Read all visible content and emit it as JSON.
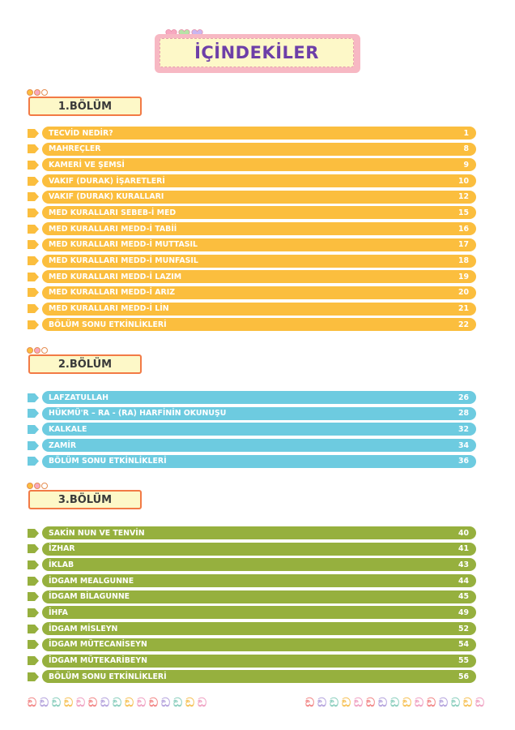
{
  "title": "İÇİNDEKİLER",
  "sections": [
    {
      "label": "1.BÖLÜM",
      "color": "#fbbe3e",
      "arrow_color": "#fbbe3e",
      "items": [
        {
          "label": "TECVİD NEDİR?",
          "page": "1"
        },
        {
          "label": "MAHREÇLER",
          "page": "8"
        },
        {
          "label": "KAMERİ VE ŞEMSİ",
          "page": "9"
        },
        {
          "label": "VAKIF (DURAK) İŞARETLERİ",
          "page": "10"
        },
        {
          "label": "VAKIF (DURAK) KURALLARI",
          "page": "12"
        },
        {
          "label": "MED KURALLARI SEBEB-İ MED",
          "page": "15"
        },
        {
          "label": "MED KURALLARI MEDD-İ TABİİ",
          "page": "16"
        },
        {
          "label": "MED KURALLARI MEDD-İ MUTTASIL",
          "page": "17"
        },
        {
          "label": "MED KURALLARI MEDD-İ MUNFASIL",
          "page": "18"
        },
        {
          "label": "MED KURALLARI MEDD-İ LAZIM",
          "page": "19"
        },
        {
          "label": "MED KURALLARI MEDD-İ ARIZ",
          "page": "20"
        },
        {
          "label": "MED KURALLARI MEDD-İ LİN",
          "page": "21"
        },
        {
          "label": "BÖLÜM SONU ETKİNLİKLERİ",
          "page": "22"
        }
      ]
    },
    {
      "label": "2.BÖLÜM",
      "color": "#6dcbe0",
      "arrow_color": "#6dcbe0",
      "items": [
        {
          "label": "LAFZATULLAH",
          "page": "26"
        },
        {
          "label": "HÜKMÜ'R – RA - (RA) HARFİNİN OKUNUŞU",
          "page": "28"
        },
        {
          "label": "KALKALE",
          "page": "32"
        },
        {
          "label": "ZAMİR",
          "page": "34"
        },
        {
          "label": "BÖLÜM SONU ETKİNLİKLERİ",
          "page": "36"
        }
      ]
    },
    {
      "label": "3.BÖLÜM",
      "color": "#96b03e",
      "arrow_color": "#96b03e",
      "items": [
        {
          "label": "SAKİN NUN VE TENVİN",
          "page": "40"
        },
        {
          "label": "İZHAR",
          "page": "41"
        },
        {
          "label": "İKLAB",
          "page": "43"
        },
        {
          "label": "İDGAM MEALGUNNE",
          "page": "44"
        },
        {
          "label": "İDGAM BİLAGUNNE",
          "page": "45"
        },
        {
          "label": "İHFA",
          "page": "49"
        },
        {
          "label": "İDGAM MİSLEYN",
          "page": "52"
        },
        {
          "label": "İDGAM MÜTECANİSEYN",
          "page": "54"
        },
        {
          "label": "İDGAM MÜTEKARİBEYN",
          "page": "55"
        },
        {
          "label": "BÖLÜM SONU ETKİNLİKLERİ",
          "page": "56"
        }
      ]
    }
  ],
  "decoration": {
    "swirl_colors": [
      "#f28a8a",
      "#b7a6de",
      "#8fd0c0",
      "#f6c35c",
      "#f0a4c4"
    ],
    "heart_colors": [
      "#f7a8c0",
      "#b6e3a6",
      "#c9b6f0"
    ],
    "dot_colors": [
      "#fbbe3e",
      "#f7a8c0",
      "#ffffff"
    ]
  }
}
